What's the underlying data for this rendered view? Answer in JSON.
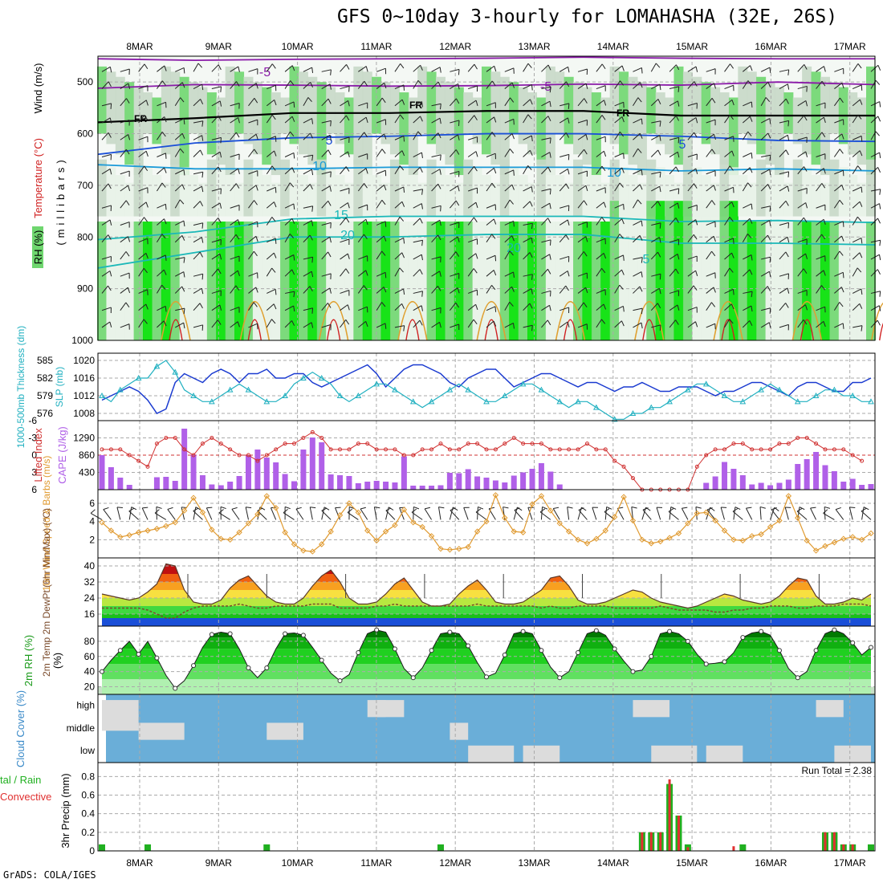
{
  "header": {
    "title": "GFS 0~10day 3-hourly for LOMAHASHA (32E, 26S)",
    "credit": "GrADS: COLA/IGES",
    "run_total": "Run Total = 2.38"
  },
  "colors": {
    "rh_light": "#e8f2e8",
    "rh_mid": "#c8d8c8",
    "rh_green": "#6fd66f",
    "rh_bright": "#00e000",
    "temp_purple": "#8a1aa8",
    "temp_blue": "#1a4fd8",
    "temp_lightblue": "#1a9ad8",
    "temp_teal": "#1ab8b8",
    "temp_orange": "#e0a030",
    "temp_red": "#d02020",
    "slp": "#1a3ad0",
    "thickness": "#20b0c0",
    "cape": "#b060e8",
    "lifted_index": "#d03030",
    "wind_speed": "#e09a30",
    "cloud": "#6aaed8",
    "cloud_gap": "#dcdcdc",
    "precip_total": "#20b020",
    "precip_conv": "#e03030"
  },
  "chart_data": [
    {
      "type": "heatmap",
      "name_key": "profile",
      "ylabel_parts": [
        "RH (%)",
        "Temperature (°C)",
        "Wind (m/s)"
      ],
      "ylabel_mb": "(millibars)",
      "y_ticks": [
        500,
        600,
        700,
        800,
        900,
        1000
      ],
      "ylim": [
        1000,
        450
      ],
      "x_ticks": [
        "8MAR",
        "9MAR",
        "10MAR",
        "11MAR",
        "12MAR",
        "13MAR",
        "14MAR",
        "15MAR",
        "16MAR",
        "17MAR"
      ],
      "contour_labels": [
        {
          "text": "-5",
          "color": "#8a1aa8"
        },
        {
          "text": "-5",
          "color": "#8a1aa8"
        },
        {
          "text": "FR",
          "color": "#000000"
        },
        {
          "text": "FR",
          "color": "#000000"
        },
        {
          "text": "FR",
          "color": "#000000"
        },
        {
          "text": "5",
          "color": "#1a4fd8"
        },
        {
          "text": "5",
          "color": "#1a4fd8"
        },
        {
          "text": "10",
          "color": "#1a9ad8"
        },
        {
          "text": "10",
          "color": "#1a9ad8"
        },
        {
          "text": "15",
          "color": "#1ab8b8"
        },
        {
          "text": "20",
          "color": "#1ab8b8"
        },
        {
          "text": "20",
          "color": "#1ab8b8"
        },
        {
          "text": "5",
          "color": "#1ab8b8"
        }
      ]
    },
    {
      "type": "line",
      "name_key": "pressure",
      "ylabel_left": "1000-500mb Thickness (dm)",
      "ylabel_right": "SLP (mb)",
      "thickness_ticks": [
        585,
        582,
        579,
        576
      ],
      "slp_ticks": [
        1020,
        1016,
        1012,
        1008
      ],
      "series": [
        {
          "name": "SLP",
          "values": [
            1011,
            1012,
            1013,
            1014,
            1013,
            1011,
            1008,
            1009,
            1015,
            1017,
            1016,
            1015,
            1017,
            1018,
            1017,
            1015,
            1017,
            1017,
            1018,
            1016,
            1016,
            1017,
            1017,
            1015,
            1014,
            1015,
            1016,
            1017,
            1018,
            1019,
            1017,
            1014,
            1016,
            1018,
            1019,
            1019,
            1018,
            1017,
            1015,
            1014,
            1016,
            1017,
            1018,
            1018,
            1016,
            1014,
            1015,
            1016,
            1017,
            1017,
            1016,
            1015,
            1014,
            1015,
            1015,
            1014,
            1013,
            1014,
            1014,
            1015,
            1014,
            1013,
            1013,
            1014,
            1014,
            1014,
            1013,
            1012,
            1013,
            1013,
            1014,
            1015,
            1015,
            1014,
            1013,
            1012,
            1014,
            1015,
            1015,
            1014,
            1013,
            1013,
            1015,
            1015,
            1016
          ]
        },
        {
          "name": "1000-500mb Thickness",
          "values": [
            579,
            578,
            580,
            581,
            582,
            582,
            584,
            585,
            583,
            580,
            579,
            578,
            578,
            579,
            580,
            581,
            580,
            579,
            578,
            578,
            579,
            581,
            582,
            583,
            582,
            581,
            579,
            578,
            579,
            580,
            581,
            581,
            580,
            579,
            578,
            577,
            578,
            579,
            580,
            581,
            580,
            579,
            578,
            578,
            579,
            580,
            581,
            581,
            580,
            579,
            578,
            577,
            578,
            578,
            577,
            576,
            575,
            575,
            576,
            576,
            577,
            577,
            578,
            579,
            580,
            581,
            581,
            580,
            579,
            578,
            578,
            579,
            580,
            581,
            580,
            579,
            578,
            578,
            579,
            580,
            580,
            579,
            579,
            578,
            578
          ]
        }
      ]
    },
    {
      "type": "bar",
      "name_key": "cape",
      "ylabel_left": "Lifted Index",
      "ylabel_right": "CAPE (J/kg)",
      "li_ticks": [
        -6,
        -3,
        0,
        3,
        6
      ],
      "cape_ticks": [
        1290,
        860,
        430
      ],
      "cape_values": [
        860,
        560,
        300,
        120,
        0,
        0,
        310,
        320,
        220,
        1520,
        870,
        360,
        130,
        110,
        200,
        340,
        850,
        1000,
        800,
        680,
        390,
        210,
        1000,
        1300,
        1180,
        380,
        360,
        340,
        160,
        200,
        220,
        200,
        180,
        830,
        100,
        100,
        100,
        110,
        420,
        410,
        510,
        330,
        300,
        230,
        180,
        350,
        430,
        520,
        660,
        450,
        130,
        0,
        0,
        0,
        0,
        0,
        0,
        0,
        0,
        0,
        0,
        0,
        0,
        0,
        0,
        0,
        170,
        330,
        690,
        520,
        360,
        130,
        170,
        110,
        170,
        250,
        640,
        760,
        940,
        610,
        460,
        200,
        270,
        120,
        140
      ],
      "li_values": [
        -1,
        -1,
        -1,
        0,
        1,
        2,
        -2,
        -3,
        -3,
        -1,
        0,
        -2,
        -3,
        -2,
        -1,
        0,
        0,
        1,
        0,
        -1,
        -2,
        -2,
        -3,
        -4,
        -3,
        -1,
        -1,
        -1,
        -2,
        -2,
        -1,
        -1,
        -1,
        0,
        0,
        -1,
        -1,
        -2,
        -1,
        -1,
        -2,
        -2,
        -1,
        -1,
        -2,
        -3,
        -2,
        -2,
        -2,
        -1,
        -1,
        -1,
        -1,
        -2,
        -1,
        -1,
        1,
        2,
        4,
        6,
        6,
        6,
        6,
        6,
        6,
        2,
        0,
        -1,
        -1,
        -2,
        -2,
        -1,
        -1,
        -1,
        -2,
        -2,
        -3,
        -3,
        -2,
        -1,
        -1,
        -1,
        0,
        1
      ]
    },
    {
      "type": "line",
      "name_key": "wind",
      "ylabel": "10m Wind Speed & Barbs (m/s)",
      "y_ticks": [
        2,
        4,
        6
      ],
      "ylim": [
        0,
        7.5
      ],
      "values": [
        3.9,
        3.0,
        2.3,
        2.5,
        2.8,
        3.0,
        3.2,
        3.5,
        3.9,
        5.2,
        6.6,
        5.0,
        3.1,
        2.1,
        2.0,
        2.8,
        3.8,
        4.8,
        6.8,
        5.5,
        2.8,
        1.5,
        0.8,
        0.7,
        1.5,
        2.9,
        4.7,
        6.0,
        5.0,
        3.0,
        1.9,
        2.9,
        3.6,
        5.3,
        3.9,
        3.4,
        2.4,
        1.0,
        0.9,
        1.0,
        1.2,
        2.9,
        4.0,
        6.9,
        4.4,
        2.9,
        2.8,
        5.9,
        6.8,
        5.2,
        3.8,
        2.9,
        2.0,
        1.6,
        2.1,
        3.0,
        4.5,
        6.7,
        4.1,
        2.0,
        1.6,
        1.8,
        2.2,
        2.7,
        3.8,
        4.9,
        5.0,
        4.1,
        3.0,
        2.0,
        1.9,
        2.4,
        2.6,
        3.4,
        4.1,
        6.8,
        4.4,
        1.9,
        0.8,
        1.3,
        1.7,
        2.1,
        2.3,
        2.0,
        2.7
      ]
    },
    {
      "type": "area",
      "name_key": "temp",
      "ylabel": "2m Temp 2m DewPt (6hr Min/Max) (°C)",
      "y_ticks": [
        16,
        24,
        32,
        40
      ],
      "ylim": [
        10,
        44
      ],
      "temp_values": [
        26,
        25,
        24,
        23,
        24,
        27,
        31,
        41,
        40,
        28,
        22,
        21,
        21,
        23,
        29,
        33,
        35,
        30,
        25,
        22,
        21,
        21,
        24,
        30,
        35,
        38,
        32,
        24,
        21,
        21,
        22,
        26,
        31,
        34,
        28,
        22,
        20,
        20,
        21,
        26,
        30,
        33,
        28,
        22,
        21,
        21,
        22,
        25,
        28,
        34,
        35,
        30,
        23,
        21,
        21,
        22,
        24,
        26,
        28,
        27,
        24,
        22,
        21,
        20,
        19,
        20,
        22,
        24,
        26,
        25,
        23,
        22,
        21,
        22,
        25,
        30,
        34,
        33,
        25,
        21,
        21,
        22,
        24,
        23,
        26
      ],
      "dew_values": [
        19,
        19,
        19,
        19,
        19,
        18,
        16,
        14,
        14,
        17,
        19,
        20,
        20,
        20,
        20,
        21,
        20,
        19,
        19,
        20,
        20,
        20,
        20,
        21,
        21,
        21,
        19,
        19,
        19,
        19,
        20,
        20,
        21,
        20,
        20,
        20,
        20,
        20,
        20,
        20,
        20,
        21,
        20,
        20,
        20,
        20,
        20,
        20,
        19,
        20,
        19,
        19,
        20,
        20,
        20,
        20,
        19,
        19,
        19,
        19,
        19,
        20,
        19,
        18,
        18,
        18,
        18,
        17,
        17,
        18,
        18,
        19,
        19,
        20,
        20,
        20,
        19,
        19,
        20,
        20,
        20,
        21,
        21,
        21,
        20
      ]
    },
    {
      "type": "area",
      "name_key": "rh",
      "ylabel": "2m RH (%)",
      "y_ticks": [
        20,
        40,
        60,
        80
      ],
      "ylim": [
        10,
        100
      ],
      "values": [
        40,
        55,
        68,
        80,
        63,
        80,
        58,
        35,
        18,
        28,
        48,
        72,
        89,
        92,
        90,
        70,
        45,
        32,
        45,
        70,
        90,
        91,
        88,
        72,
        55,
        38,
        28,
        36,
        65,
        90,
        95,
        92,
        70,
        44,
        32,
        45,
        68,
        90,
        92,
        90,
        74,
        52,
        33,
        38,
        62,
        90,
        93,
        90,
        68,
        46,
        32,
        40,
        65,
        90,
        94,
        88,
        70,
        54,
        40,
        42,
        60,
        90,
        93,
        90,
        80,
        63,
        50,
        51,
        53,
        65,
        85,
        91,
        93,
        88,
        68,
        44,
        32,
        40,
        68,
        90,
        95,
        90,
        78,
        62,
        72
      ]
    },
    {
      "type": "heatmap",
      "name_key": "cloud",
      "ylabel": "Cloud Cover (%)",
      "levels": [
        "high",
        "middle",
        "low"
      ]
    },
    {
      "type": "bar",
      "name_key": "precip",
      "ylabel_left": "Total / Rain Convective",
      "ylabel": "3hr Precip (mm)",
      "y_ticks": [
        0,
        0.2,
        0.4,
        0.6,
        0.8
      ],
      "ylim": [
        0,
        0.95
      ],
      "total_values": [
        0.07,
        0,
        0,
        0,
        0,
        0.07,
        0,
        0,
        0,
        0,
        0,
        0,
        0,
        0,
        0,
        0,
        0,
        0,
        0.07,
        0,
        0,
        0,
        0,
        0,
        0,
        0,
        0,
        0,
        0,
        0,
        0,
        0,
        0,
        0,
        0,
        0,
        0,
        0.07,
        0,
        0,
        0,
        0,
        0,
        0,
        0,
        0,
        0,
        0,
        0,
        0,
        0,
        0,
        0,
        0,
        0,
        0,
        0,
        0,
        0,
        0.2,
        0.2,
        0.2,
        0.72,
        0.38,
        0.07,
        0,
        0,
        0,
        0,
        0,
        0.07,
        0,
        0,
        0,
        0,
        0,
        0,
        0,
        0,
        0.2,
        0.2,
        0.07,
        0.07,
        0,
        0.07
      ],
      "conv_values": [
        0,
        0,
        0,
        0,
        0,
        0,
        0,
        0,
        0,
        0,
        0,
        0,
        0,
        0,
        0,
        0,
        0,
        0,
        0,
        0,
        0,
        0,
        0,
        0,
        0,
        0,
        0,
        0,
        0,
        0,
        0,
        0,
        0,
        0,
        0,
        0,
        0,
        0,
        0,
        0,
        0,
        0,
        0,
        0,
        0,
        0,
        0,
        0,
        0,
        0,
        0,
        0,
        0,
        0,
        0,
        0,
        0,
        0,
        0,
        0.2,
        0.2,
        0.2,
        0.77,
        0.38,
        0.04,
        0,
        0,
        0,
        0,
        0.05,
        0,
        0,
        0,
        0,
        0,
        0,
        0,
        0,
        0,
        0.2,
        0.2,
        0.07,
        0.07,
        0,
        0
      ]
    }
  ]
}
